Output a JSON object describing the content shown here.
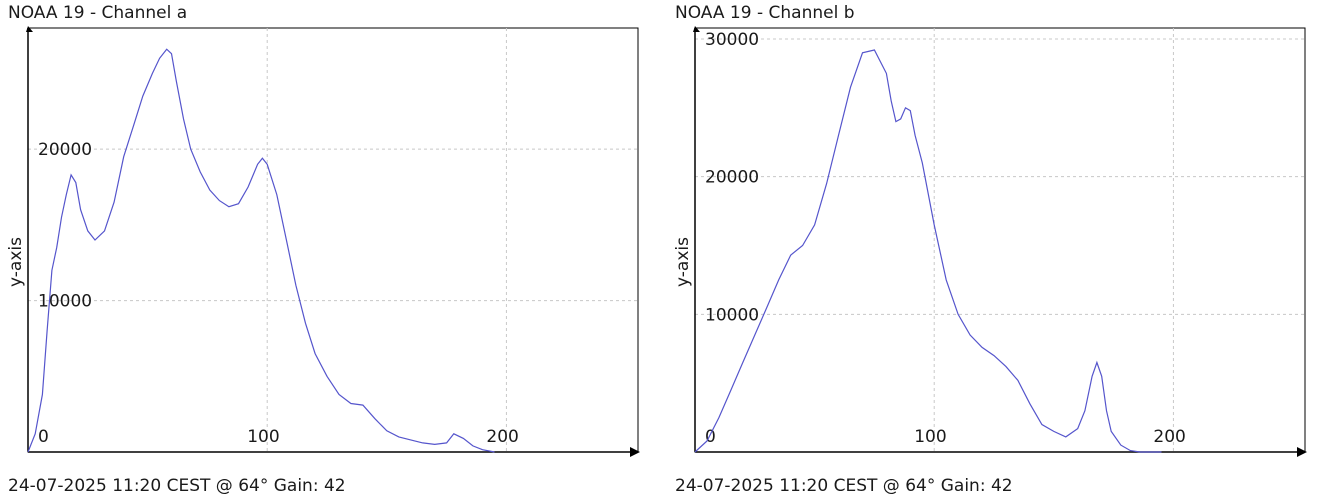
{
  "charts": [
    {
      "title": "NOAA 19 - Channel a",
      "footer": "24-07-2025 11:20 CEST @ 64° Gain: 42",
      "chart_data": {
        "type": "line",
        "xlabel": "",
        "ylabel": "y-axis",
        "xlim": [
          0,
          255
        ],
        "ylim": [
          0,
          28000
        ],
        "xticks": [
          0,
          100,
          200
        ],
        "yticks": [
          10000,
          20000
        ],
        "grid": true,
        "color": "#5555cc",
        "x": [
          0,
          3,
          6,
          8,
          10,
          12,
          14,
          16,
          18,
          20,
          22,
          25,
          28,
          32,
          36,
          40,
          44,
          48,
          52,
          55,
          58,
          60,
          62,
          65,
          68,
          72,
          76,
          80,
          84,
          88,
          92,
          96,
          98,
          100,
          104,
          108,
          112,
          116,
          120,
          125,
          130,
          135,
          140,
          145,
          150,
          155,
          160,
          165,
          170,
          175,
          178,
          182,
          186,
          190,
          195
        ],
        "y": [
          0,
          1200,
          3800,
          8000,
          12000,
          13500,
          15500,
          17000,
          18300,
          17800,
          16000,
          14600,
          14000,
          14600,
          16500,
          19500,
          21500,
          23500,
          25000,
          26000,
          26600,
          26300,
          24500,
          22000,
          20000,
          18500,
          17300,
          16600,
          16200,
          16400,
          17500,
          19000,
          19400,
          19000,
          17000,
          14000,
          11000,
          8500,
          6500,
          5000,
          3800,
          3200,
          3100,
          2200,
          1400,
          1000,
          800,
          600,
          500,
          600,
          1200,
          900,
          400,
          150,
          0
        ]
      }
    },
    {
      "title": "NOAA 19 - Channel b",
      "footer": "24-07-2025 11:20 CEST @ 64° Gain: 42",
      "chart_data": {
        "type": "line",
        "xlabel": "",
        "ylabel": "y-axis",
        "xlim": [
          0,
          255
        ],
        "ylim": [
          0,
          30800
        ],
        "xticks": [
          0,
          100,
          200
        ],
        "yticks": [
          10000,
          20000,
          30000
        ],
        "grid": true,
        "color": "#5555cc",
        "x": [
          0,
          5,
          10,
          15,
          20,
          25,
          30,
          35,
          40,
          45,
          50,
          55,
          60,
          65,
          70,
          75,
          80,
          82,
          84,
          86,
          88,
          90,
          92,
          95,
          100,
          105,
          110,
          115,
          120,
          125,
          130,
          135,
          140,
          145,
          150,
          155,
          160,
          163,
          166,
          168,
          170,
          172,
          174,
          178,
          182,
          186,
          190,
          195
        ],
        "y": [
          0,
          800,
          2500,
          4500,
          6500,
          8500,
          10500,
          12500,
          14300,
          15000,
          16500,
          19500,
          23000,
          26500,
          29000,
          29200,
          27500,
          25500,
          24000,
          24200,
          25000,
          24800,
          23000,
          21000,
          16500,
          12500,
          10000,
          8500,
          7600,
          7000,
          6200,
          5200,
          3500,
          2000,
          1500,
          1100,
          1700,
          3000,
          5500,
          6500,
          5500,
          3000,
          1500,
          500,
          100,
          0,
          0,
          0
        ]
      }
    }
  ]
}
